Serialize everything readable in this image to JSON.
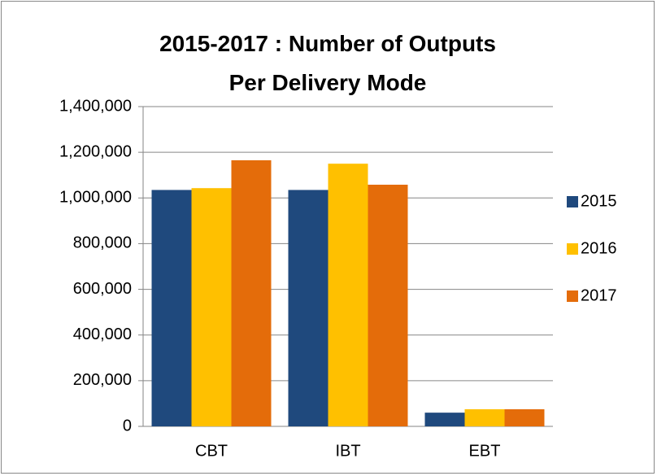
{
  "chart_data": {
    "type": "bar",
    "title": "2015-2017 : Number of Outputs Per Delivery Mode",
    "categories": [
      "CBT",
      "IBT",
      "EBT"
    ],
    "series": [
      {
        "name": "2015",
        "color": "#1f497d",
        "values": [
          1035000,
          1035000,
          60000
        ]
      },
      {
        "name": "2016",
        "color": "#ffc000",
        "values": [
          1043000,
          1150000,
          75000
        ]
      },
      {
        "name": "2017",
        "color": "#e46c0a",
        "values": [
          1165000,
          1058000,
          75000
        ]
      }
    ],
    "ylim": [
      0,
      1400000
    ],
    "yticks": [
      0,
      {
        "value": 200000,
        "label": "200,000"
      },
      {
        "value": 400000,
        "label": "400,000"
      },
      {
        "value": 600000,
        "label": "600,000"
      },
      {
        "value": 800000,
        "label": "800,000"
      },
      {
        "value": 1000000,
        "label": "1,000,000"
      },
      {
        "value": 1200000,
        "label": "1,200,000"
      },
      {
        "value": 1400000,
        "label": "1,400,000"
      }
    ],
    "grid": true,
    "legend": "right"
  }
}
